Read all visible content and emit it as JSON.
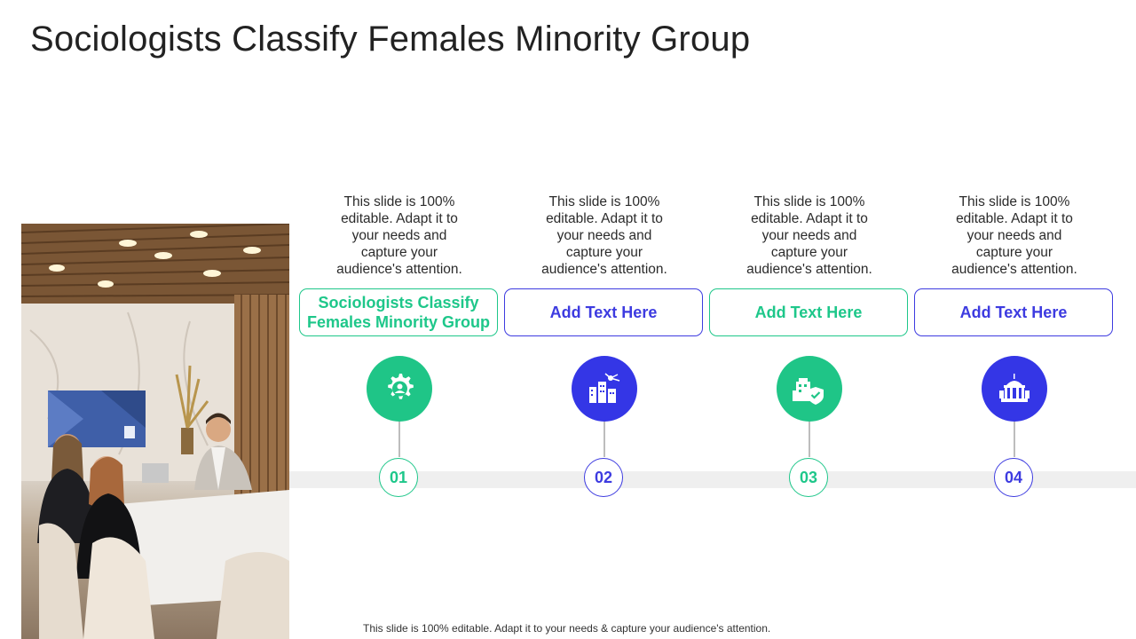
{
  "title": "Sociologists Classify Females Minority Group",
  "columns": [
    {
      "description": "This slide is 100% editable. Adapt it to your needs and capture your audience's attention.",
      "label": "Sociologists Classify Females Minority Group",
      "number": "01",
      "icon": "gear-person-icon",
      "color": "#1ec78a"
    },
    {
      "description": "This slide is 100% editable. Adapt it to your needs and capture your audience's attention.",
      "label": "Add Text Here",
      "number": "02",
      "icon": "city-network-icon",
      "color": "#3d3be0"
    },
    {
      "description": "This slide is 100% editable. Adapt it to your needs and capture your audience's attention.",
      "label": "Add Text Here",
      "number": "03",
      "icon": "building-shield-icon",
      "color": "#1ec78a"
    },
    {
      "description": "This slide is 100% editable. Adapt it to your needs and capture your audience's attention.",
      "label": "Add Text Here",
      "number": "04",
      "icon": "government-building-icon",
      "color": "#3d3be0"
    }
  ],
  "footer": "This slide is 100% editable. Adapt it to your needs & capture your audience's attention."
}
